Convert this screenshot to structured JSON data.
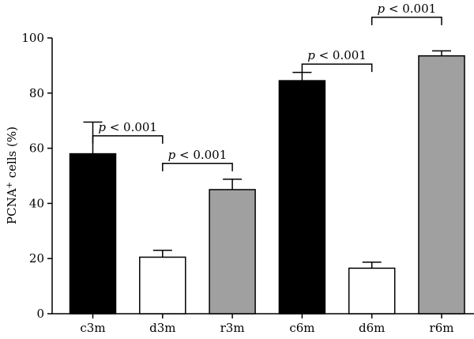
{
  "chart_data": {
    "type": "bar",
    "categories": [
      "c3m",
      "d3m",
      "r3m",
      "c6m",
      "d6m",
      "r6m"
    ],
    "values": [
      58,
      20.5,
      45,
      84.5,
      16.5,
      93.5
    ],
    "errors": [
      11.5,
      2.5,
      3.8,
      3,
      2.2,
      1.8
    ],
    "fills": [
      "#000000",
      "#ffffff",
      "#a0a0a0",
      "#000000",
      "#ffffff",
      "#a0a0a0"
    ],
    "ylim": [
      0,
      100
    ],
    "yticks": [
      0,
      20,
      40,
      60,
      80,
      100
    ],
    "ylabel": {
      "main": "PCNA",
      "sup": "+",
      "rest": " cells (%)"
    },
    "xlabel": "",
    "title": "",
    "annotations": [
      {
        "from": "c3m",
        "to": "d3m",
        "y": 64.5,
        "p": "p",
        "text": " < 0.001"
      },
      {
        "from": "d3m",
        "to": "r3m",
        "y": 54.5,
        "p": "p",
        "text": " < 0.001"
      },
      {
        "from": "c6m",
        "to": "d6m",
        "y": 90.5,
        "p": "p",
        "text": " < 0.001"
      },
      {
        "from": "d6m",
        "to": "r6m",
        "y": 107.5,
        "p": "p",
        "text": " < 0.001"
      }
    ]
  }
}
